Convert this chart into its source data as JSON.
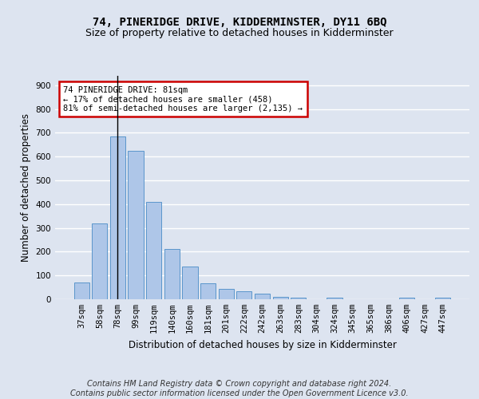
{
  "title": "74, PINERIDGE DRIVE, KIDDERMINSTER, DY11 6BQ",
  "subtitle": "Size of property relative to detached houses in Kidderminster",
  "xlabel": "Distribution of detached houses by size in Kidderminster",
  "ylabel": "Number of detached properties",
  "bar_labels": [
    "37sqm",
    "58sqm",
    "78sqm",
    "99sqm",
    "119sqm",
    "140sqm",
    "160sqm",
    "181sqm",
    "201sqm",
    "222sqm",
    "242sqm",
    "263sqm",
    "283sqm",
    "304sqm",
    "324sqm",
    "345sqm",
    "365sqm",
    "386sqm",
    "406sqm",
    "427sqm",
    "447sqm"
  ],
  "bar_values": [
    70,
    320,
    685,
    625,
    410,
    210,
    138,
    68,
    45,
    32,
    22,
    11,
    8,
    0,
    7,
    0,
    0,
    0,
    8,
    0,
    8
  ],
  "bar_color": "#aec6e8",
  "bar_edge_color": "#5a96cc",
  "vline_x": 2,
  "vline_color": "#000000",
  "annotation_text": "74 PINERIDGE DRIVE: 81sqm\n← 17% of detached houses are smaller (458)\n81% of semi-detached houses are larger (2,135) →",
  "annotation_box_color": "#cc0000",
  "annotation_box_facecolor": "#ffffff",
  "ylim": [
    0,
    940
  ],
  "yticks": [
    0,
    100,
    200,
    300,
    400,
    500,
    600,
    700,
    800,
    900
  ],
  "footer_text": "Contains HM Land Registry data © Crown copyright and database right 2024.\nContains public sector information licensed under the Open Government Licence v3.0.",
  "background_color": "#dde4f0",
  "plot_background": "#dde4f0",
  "grid_color": "#ffffff",
  "title_fontsize": 10,
  "subtitle_fontsize": 9,
  "xlabel_fontsize": 8.5,
  "ylabel_fontsize": 8.5,
  "tick_fontsize": 7.5,
  "footer_fontsize": 7
}
